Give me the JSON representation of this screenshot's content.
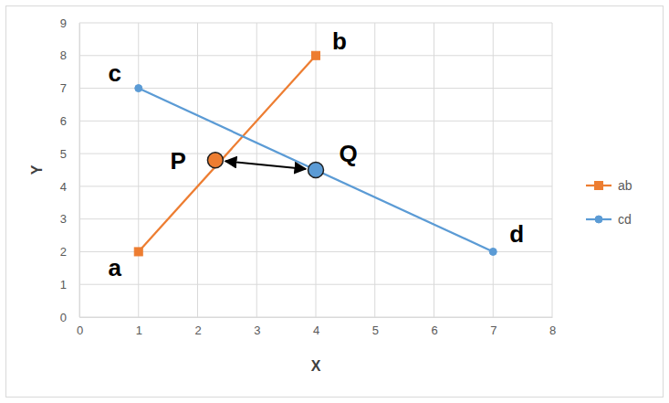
{
  "chart_data": {
    "type": "line",
    "x_label": "X",
    "y_label": "Y",
    "xlim": [
      0,
      8
    ],
    "xticks": [
      0,
      1,
      2,
      3,
      4,
      5,
      6,
      7,
      8
    ],
    "ylim": [
      0,
      9
    ],
    "yticks": [
      0,
      1,
      2,
      3,
      4,
      5,
      6,
      7,
      8,
      9
    ],
    "grid": true,
    "legend": "right",
    "series": [
      {
        "name": "ab",
        "color": "#ed7d31",
        "marker": "square",
        "x": [
          1,
          4
        ],
        "values": [
          2,
          8
        ]
      },
      {
        "name": "cd",
        "color": "#5b9bd5",
        "marker": "circle",
        "x": [
          1,
          7
        ],
        "values": [
          7,
          2
        ]
      }
    ],
    "points": [
      {
        "label": "P",
        "x": 2.3,
        "y": 4.8,
        "color": "#ed7d31"
      },
      {
        "label": "Q",
        "x": 4.0,
        "y": 4.5,
        "color": "#5b9bd5"
      }
    ],
    "annotations": [
      {
        "text": "a",
        "x": 0.6,
        "y": 1.5
      },
      {
        "text": "b",
        "x": 4.4,
        "y": 8.45
      },
      {
        "text": "c",
        "x": 0.6,
        "y": 7.45
      },
      {
        "text": "d",
        "x": 7.4,
        "y": 2.55
      },
      {
        "text": "P",
        "x": 1.67,
        "y": 4.78
      },
      {
        "text": "Q",
        "x": 4.55,
        "y": 5.0
      }
    ]
  }
}
